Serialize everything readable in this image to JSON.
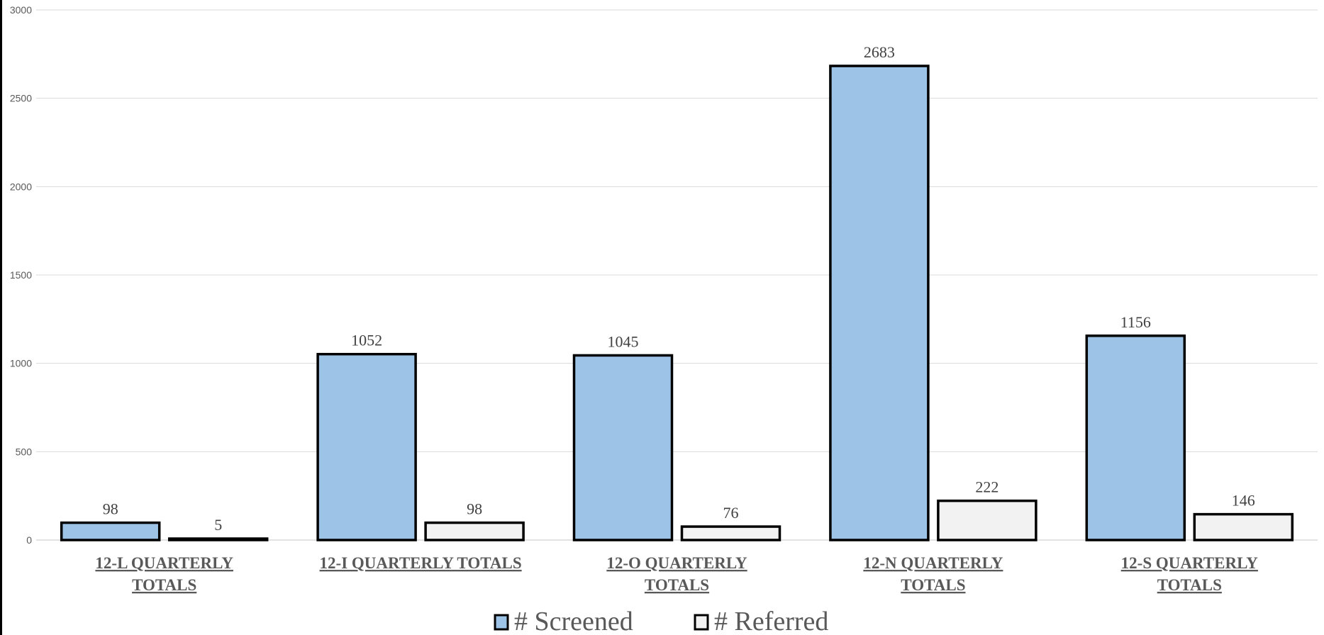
{
  "chart_data": {
    "type": "bar",
    "categories": [
      [
        "12-L QUARTERLY",
        "TOTALS"
      ],
      [
        "12-I QUARTERLY TOTALS"
      ],
      [
        "12-O QUARTERLY",
        "TOTALS"
      ],
      [
        "12-N QUARTERLY",
        "TOTALS"
      ],
      [
        "12-S QUARTERLY",
        "TOTALS"
      ]
    ],
    "series": [
      {
        "name": "# Screened",
        "values": [
          98,
          1052,
          1045,
          2683,
          1156
        ],
        "color": "#9dc3e6"
      },
      {
        "name": "# Referred",
        "values": [
          5,
          98,
          76,
          222,
          146
        ],
        "color": "#f2f2f2"
      }
    ],
    "ylim": [
      0,
      3000
    ],
    "yticks": [
      0,
      500,
      1000,
      1500,
      2000,
      2500,
      3000
    ],
    "grid": true,
    "legend": "bottom-center",
    "data_labels": true,
    "title": "",
    "xlabel": "",
    "ylabel": ""
  }
}
